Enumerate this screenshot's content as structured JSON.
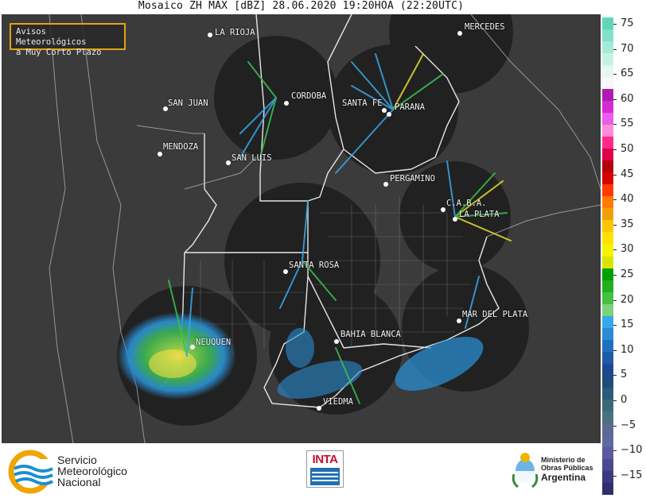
{
  "title": "Mosaico ZH MAX [dBZ] 28.06.2020 19:20HOA (22:20UTC)",
  "warning_box": {
    "line1": "Avisos Meteorológicos",
    "line2": "a Muy Corto Plazo",
    "border_color": "#e3a21a"
  },
  "cities": [
    {
      "name": "LA RIOJA"
    },
    {
      "name": "MERCEDES"
    },
    {
      "name": "CORDOBA"
    },
    {
      "name": "SAN JUAN"
    },
    {
      "name": "SANTA FE"
    },
    {
      "name": "PARANA"
    },
    {
      "name": "MENDOZA"
    },
    {
      "name": "SAN LUIS"
    },
    {
      "name": "PERGAMINO"
    },
    {
      "name": "C.A.B.A."
    },
    {
      "name": "LA PLATA"
    },
    {
      "name": "SANTA ROSA"
    },
    {
      "name": "NEUQUEN"
    },
    {
      "name": "MAR DEL PLATA"
    },
    {
      "name": "BAHIA BLANCA"
    },
    {
      "name": "VIEDMA"
    }
  ],
  "colorbar": {
    "unit": "dBZ",
    "ticks": [
      "75",
      "70",
      "65",
      "60",
      "55",
      "50",
      "45",
      "40",
      "35",
      "30",
      "25",
      "20",
      "15",
      "10",
      "5",
      "0",
      "−5",
      "−10",
      "−15"
    ],
    "colors": [
      "#5fd7b4",
      "#7fe1c5",
      "#a4ead7",
      "#c6f2e6",
      "#e4f8f1",
      "#f7f7f7",
      "#b01ab0",
      "#d42bd4",
      "#ea5cea",
      "#ff8ad8",
      "#ff2a8a",
      "#e0004a",
      "#b4000c",
      "#d80000",
      "#ff3a00",
      "#ff7a00",
      "#f0a000",
      "#ffc400",
      "#ffe000",
      "#f4f400",
      "#d6e600",
      "#00a000",
      "#20b020",
      "#44c044",
      "#7ad27a",
      "#38a8e8",
      "#2a8cd8",
      "#2070c0",
      "#1e5aa8",
      "#1d4990",
      "#1f4a7a",
      "#2a5a7a",
      "#3a6a7a",
      "#4a7080",
      "#5a6a90",
      "#606aa0",
      "#5a5aa0",
      "#4a4a90",
      "#3a3a80",
      "#2e2e70"
    ]
  },
  "footer": {
    "smn_line1": "Servicio",
    "smn_line2": "Meteorológico",
    "smn_line3": "Nacional",
    "inta": "INTA",
    "ministry_line1": "Ministerio de",
    "ministry_line2": "Obras Públicas",
    "ministry_line3": "Argentina"
  }
}
